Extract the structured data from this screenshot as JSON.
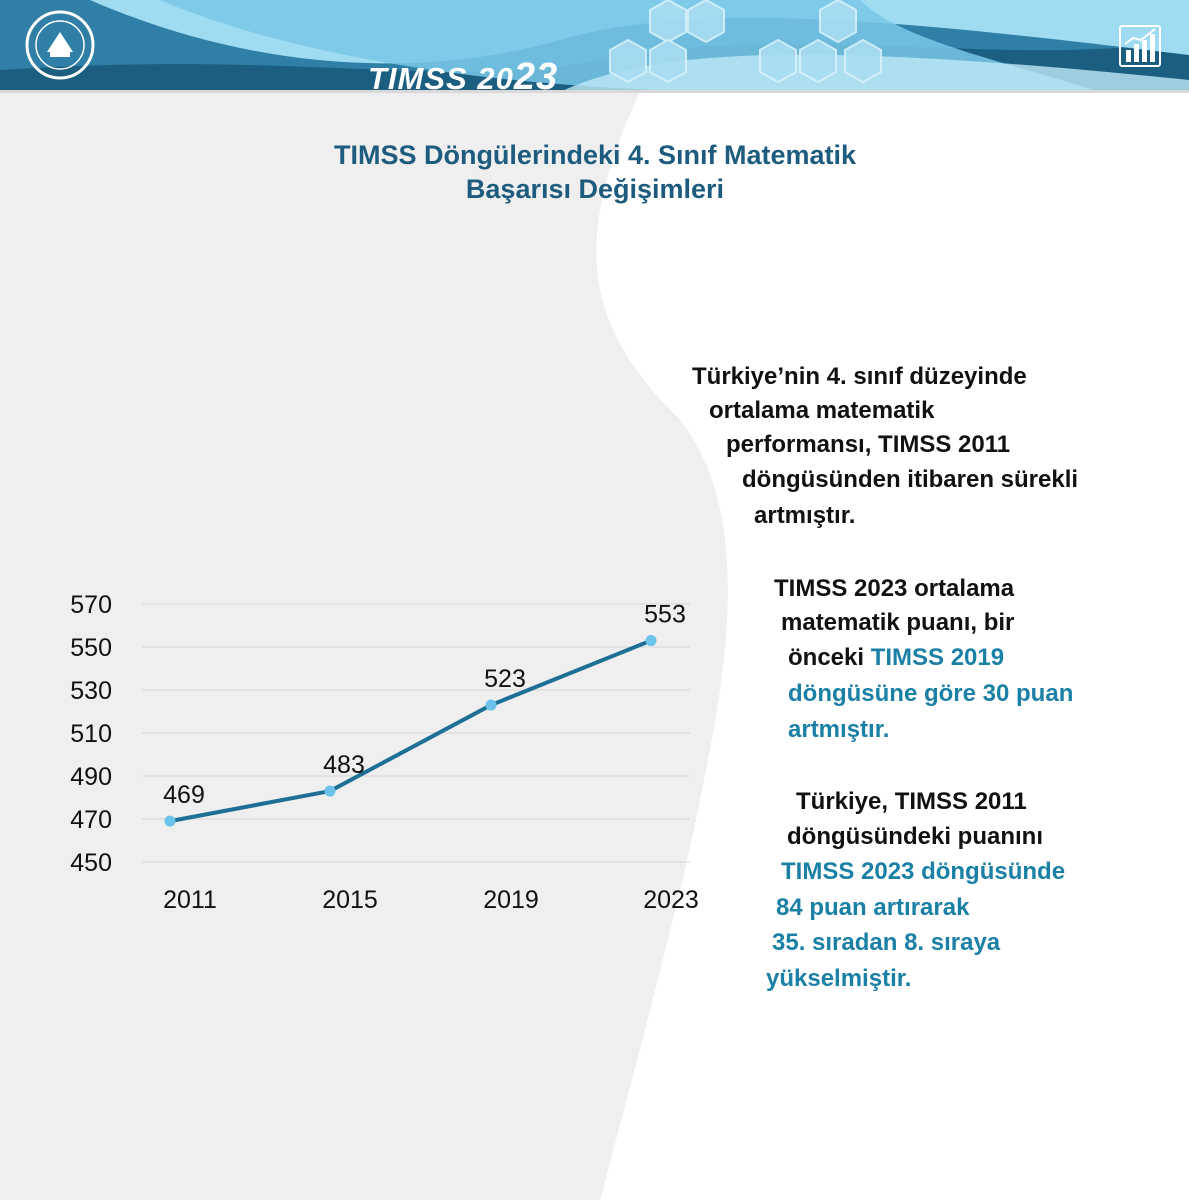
{
  "banner": {
    "title_prefix": "TIMSS 20",
    "title_suffix": "23"
  },
  "page": {
    "title_line1": "TIMSS Döngülerindeki 4. Sınıf Matematik",
    "title_line2": "Başarısı Değişimleri"
  },
  "icons": {
    "logo": "ministry-seal-logo",
    "corner": "bar-chart-trend-icon"
  },
  "colors": {
    "header_dark": "#1d5b7f",
    "header_light": "#8fd3ee",
    "line": "#1e6f96",
    "marker": "#6cc3ea",
    "highlight": "#1b80a5"
  },
  "chart_data": {
    "type": "line",
    "categories": [
      "2011",
      "2015",
      "2019",
      "2023"
    ],
    "values": [
      469,
      483,
      523,
      553
    ],
    "data_labels": [
      "469",
      "483",
      "523",
      "553"
    ],
    "yticks": [
      "570",
      "550",
      "530",
      "510",
      "490",
      "470",
      "450"
    ],
    "ylim": [
      450,
      570
    ],
    "grid": true,
    "title": "",
    "xlabel": "",
    "ylabel": ""
  },
  "text_blocks": {
    "block1": [
      "Türkiye’nin 4. sınıf düzeyinde",
      "ortalama matematik",
      "performansı, TIMSS 2011",
      "döngüsünden itibaren sürekli",
      "artmıştır."
    ],
    "block2": {
      "l1": "TIMSS 2023 ortalama",
      "l2": "matematik puanı, bir",
      "l3a": "önceki ",
      "l3b": "TIMSS 2019",
      "l4": "döngüsüne göre 30 puan",
      "l5": "artmıştır."
    },
    "block3": {
      "l1": "Türkiye, TIMSS 2011",
      "l2": "döngüsündeki puanını",
      "l3": "TIMSS 2023 döngüsünde",
      "l4": "84 puan artırarak",
      "l5": "35. sıradan 8. sıraya",
      "l6": "yükselmiştir."
    }
  }
}
